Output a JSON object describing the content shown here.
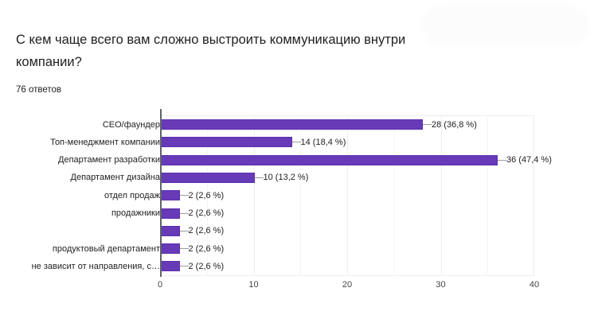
{
  "question": {
    "title": "С кем чаще всего вам сложно выстроить коммуникацию внутри компании?",
    "responses": "76 ответов"
  },
  "colors": {
    "bar": "#673ab7",
    "axis": "#5f6368",
    "grid": "#efefef"
  },
  "chart_data": {
    "type": "bar",
    "orientation": "horizontal",
    "title": "С кем чаще всего вам сложно выстроить коммуникацию внутри компании?",
    "subtitle": "76 ответов",
    "categories": [
      "CEO/фаундер",
      "Топ-менеджмент компании",
      "Департамент разработки",
      "Департамент дизайна",
      "отдел продаж",
      "продажники",
      "",
      "продуктовый департамент",
      "не зависит от направления, с…"
    ],
    "values": [
      28,
      14,
      36,
      10,
      2,
      2,
      2,
      2,
      2
    ],
    "labels": [
      "28 (36,8 %)",
      "14 (18,4 %)",
      "36 (47,4 %)",
      "10 (13,2 %)",
      "2 (2,6 %)",
      "2 (2,6 %)",
      "2 (2,6 %)",
      "2 (2,6 %)",
      "2 (2,6 %)"
    ],
    "xlabel": "",
    "ylabel": "",
    "xlim": [
      0,
      40
    ],
    "xticks": [
      "0",
      "10",
      "20",
      "30",
      "40"
    ],
    "grid": true,
    "legend": "none"
  }
}
